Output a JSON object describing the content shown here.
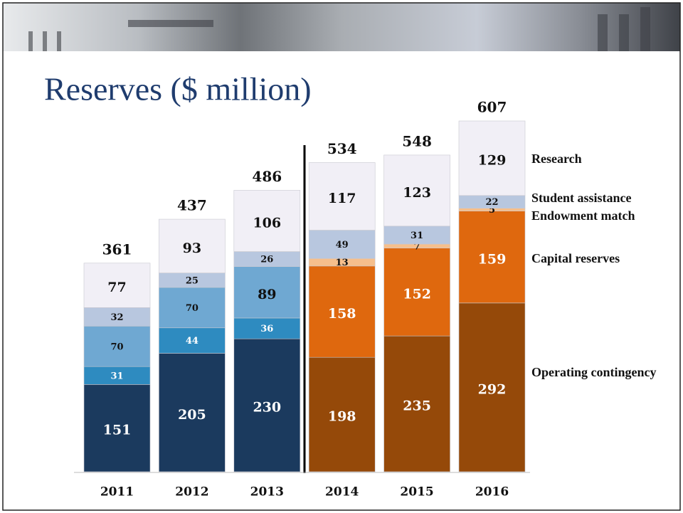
{
  "chart_data": {
    "type": "stacked_bar",
    "title": "Reserves ($ million)",
    "categories": [
      "2011",
      "2012",
      "2013",
      "2014",
      "2015",
      "2016"
    ],
    "series": [
      {
        "name": "Operating contingency",
        "colors": [
          "#1b3a5e",
          "#1b3a5e",
          "#1b3a5e",
          "#954909",
          "#954909",
          "#954909"
        ],
        "values": [
          151,
          205,
          230,
          198,
          235,
          292
        ]
      },
      {
        "name": "Capital reserves",
        "colors": [
          "#2e8bc0",
          "#2e8bc0",
          "#2e8bc0",
          "#df680e",
          "#df680e",
          "#df680e"
        ],
        "values": [
          31,
          44,
          36,
          158,
          152,
          159
        ]
      },
      {
        "name": "Endowment match",
        "colors": [
          "#6fa8d2",
          "#6fa8d2",
          "#6fa8d2",
          "#f6bf8c",
          "#f6bf8c",
          "#f6bf8c"
        ],
        "values": [
          70,
          70,
          89,
          13,
          7,
          5
        ]
      },
      {
        "name": "Student assistance",
        "colors": [
          "#b8c7df",
          "#b8c7df",
          "#b8c7df",
          "#b8c7df",
          "#b8c7df",
          "#b8c7df"
        ],
        "values": [
          32,
          25,
          26,
          49,
          31,
          22
        ]
      },
      {
        "name": "Research",
        "colors": [
          "#f1eff6",
          "#f1eff6",
          "#f1eff6",
          "#f1eff6",
          "#f1eff6",
          "#f1eff6"
        ],
        "values": [
          77,
          93,
          106,
          117,
          123,
          129
        ]
      }
    ],
    "totals": [
      361,
      437,
      486,
      534,
      548,
      607
    ]
  }
}
